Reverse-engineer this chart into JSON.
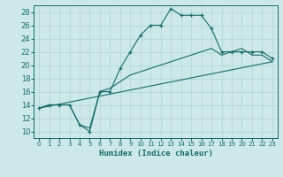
{
  "xlabel": "Humidex (Indice chaleur)",
  "bg_color": "#cce8e8",
  "grid_color": "#b0d4d4",
  "line_color": "#1a6b6b",
  "xlim": [
    -0.5,
    23.5
  ],
  "ylim": [
    9,
    29
  ],
  "xticks": [
    0,
    1,
    2,
    3,
    4,
    5,
    6,
    7,
    8,
    9,
    10,
    11,
    12,
    13,
    14,
    15,
    16,
    17,
    18,
    19,
    20,
    21,
    22,
    23
  ],
  "yticks": [
    10,
    12,
    14,
    16,
    18,
    20,
    22,
    24,
    26,
    28
  ],
  "curve1_x": [
    0,
    1,
    2,
    3,
    4,
    5,
    6,
    7,
    8,
    9,
    10,
    11,
    12,
    13,
    14,
    15,
    16,
    17,
    18,
    19,
    20,
    21,
    22,
    23
  ],
  "curve1_y": [
    13.5,
    14.0,
    14.0,
    14.0,
    11.0,
    10.0,
    16.0,
    16.0,
    19.5,
    22.0,
    24.5,
    26.0,
    26.0,
    28.5,
    27.5,
    27.5,
    27.5,
    25.5,
    22.0,
    22.0,
    22.0,
    22.0,
    22.0,
    21.0
  ],
  "curve2_x": [
    0,
    1,
    2,
    3,
    4,
    5,
    6,
    7,
    8,
    9,
    10,
    11,
    12,
    13,
    14,
    15,
    16,
    17,
    18,
    19,
    20,
    21,
    22,
    23
  ],
  "curve2_y": [
    13.5,
    14.0,
    14.0,
    14.0,
    11.0,
    10.5,
    16.0,
    16.5,
    17.5,
    18.5,
    19.0,
    19.5,
    20.0,
    20.5,
    21.0,
    21.5,
    22.0,
    22.5,
    21.5,
    22.0,
    22.5,
    21.5,
    21.5,
    20.5
  ],
  "curve3_x": [
    0,
    23
  ],
  "curve3_y": [
    13.5,
    20.5
  ]
}
